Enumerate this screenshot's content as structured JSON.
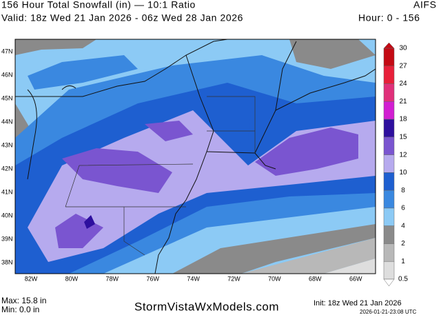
{
  "header": {
    "title": "156 Hour Total Snowfall (in) — 10:1 Ratio",
    "model": "AIFS",
    "valid": "Valid: 18z Wed 21 Jan 2026 - 06z Wed 28 Jan 2026",
    "hours": "Hour: 0 - 156"
  },
  "map": {
    "lat_labels": [
      "47N",
      "46N",
      "45N",
      "44N",
      "43N",
      "42N",
      "41N",
      "40N",
      "39N",
      "38N"
    ],
    "lon_labels": [
      "82W",
      "80W",
      "78W",
      "76W",
      "74W",
      "72W",
      "70W",
      "68W",
      "66W"
    ]
  },
  "colorbar": [
    {
      "label": "30",
      "color": "#c40a14"
    },
    {
      "label": "27",
      "color": "#e8203a"
    },
    {
      "label": "24",
      "color": "#e0307a"
    },
    {
      "label": "21",
      "color": "#d21ed2"
    },
    {
      "label": "18",
      "color": "#2e0f9e"
    },
    {
      "label": "15",
      "color": "#7a55d0"
    },
    {
      "label": "12",
      "color": "#b6aaee"
    },
    {
      "label": "10",
      "color": "#1e5fd0"
    },
    {
      "label": "8",
      "color": "#3a88e0"
    },
    {
      "label": "6",
      "color": "#8ccaf5"
    },
    {
      "label": "4",
      "color": "#8a8a8a"
    },
    {
      "label": "2",
      "color": "#b8b8b8"
    },
    {
      "label": "1",
      "color": "#dedede"
    },
    {
      "label": "0.5",
      "color": "#ffffff"
    }
  ],
  "footer": {
    "max": "Max: 15.8 in",
    "min": "Min: 0.0 in",
    "site": "StormVistaWxModels.com",
    "init": "Init: 18z Wed 21 Jan 2026",
    "stamp": "2026-01-21-23:08 UTC"
  }
}
